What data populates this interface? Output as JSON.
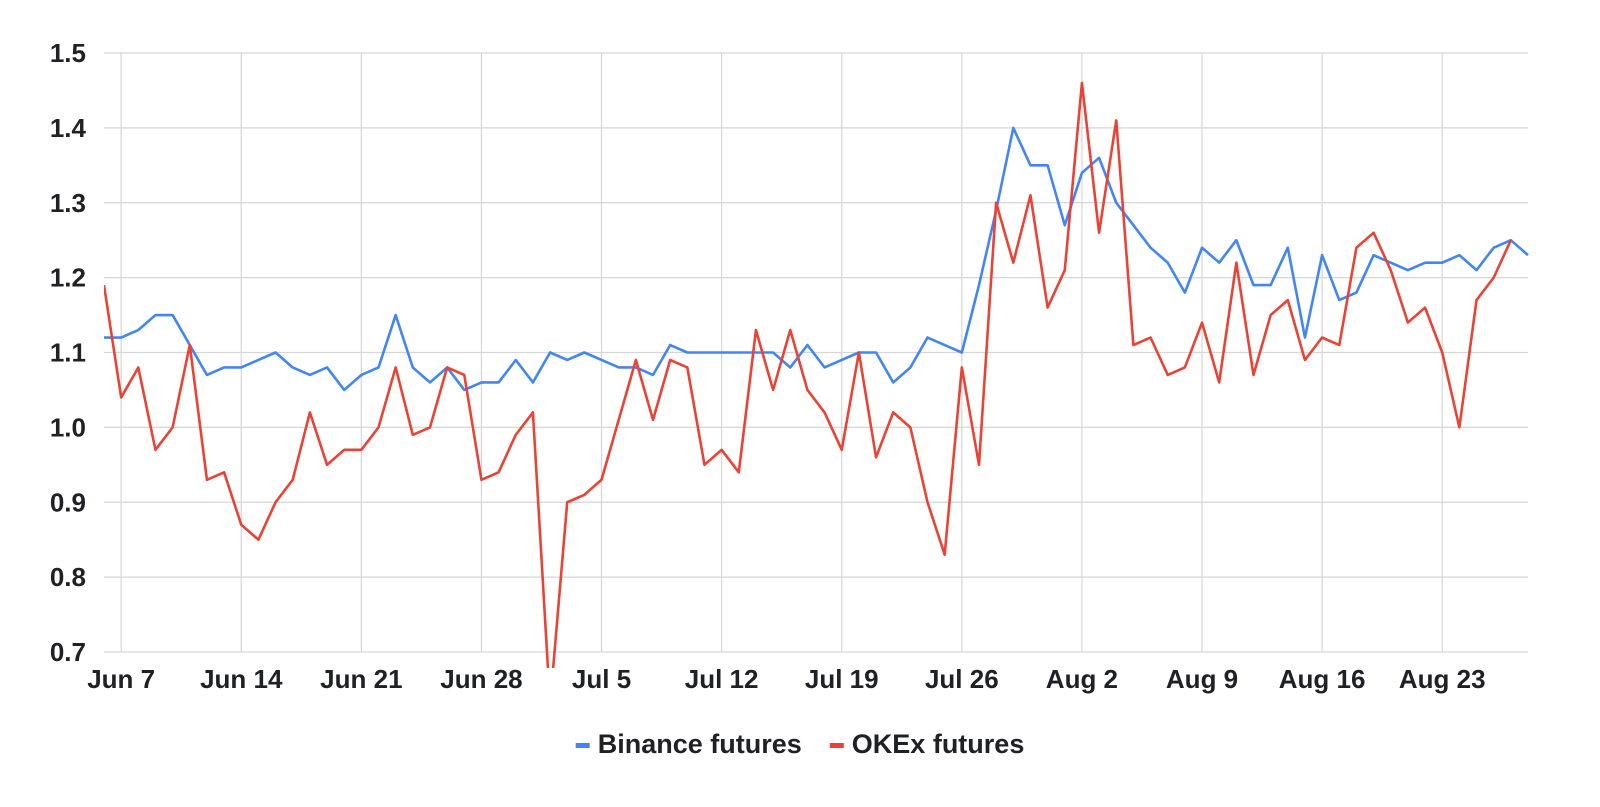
{
  "chart_data": {
    "type": "line",
    "title": "",
    "xlabel": "",
    "ylabel": "",
    "ylim": [
      0.7,
      1.5
    ],
    "yticks": [
      "0.7",
      "0.8",
      "0.9",
      "1.0",
      "1.1",
      "1.2",
      "1.3",
      "1.4",
      "1.5"
    ],
    "x_start": "2021-06-06",
    "xticks": [
      {
        "label": "Jun 7",
        "date": "2021-06-07"
      },
      {
        "label": "Jun 14",
        "date": "2021-06-14"
      },
      {
        "label": "Jun 21",
        "date": "2021-06-21"
      },
      {
        "label": "Jun 28",
        "date": "2021-06-28"
      },
      {
        "label": "Jul 5",
        "date": "2021-07-05"
      },
      {
        "label": "Jul 12",
        "date": "2021-07-12"
      },
      {
        "label": "Jul 19",
        "date": "2021-07-19"
      },
      {
        "label": "Jul 26",
        "date": "2021-07-26"
      },
      {
        "label": "Aug 2",
        "date": "2021-08-02"
      },
      {
        "label": "Aug 9",
        "date": "2021-08-09"
      },
      {
        "label": "Aug 16",
        "date": "2021-08-16"
      },
      {
        "label": "Aug 23",
        "date": "2021-08-23"
      }
    ],
    "grid": true,
    "legend_position": "bottom",
    "series": [
      {
        "name": "Binance futures",
        "color": "#4285f4",
        "values": [
          1.12,
          1.12,
          1.13,
          1.15,
          1.15,
          1.11,
          1.07,
          1.08,
          1.08,
          1.09,
          1.1,
          1.08,
          1.07,
          1.08,
          1.05,
          1.07,
          1.08,
          1.15,
          1.08,
          1.06,
          1.08,
          1.05,
          1.06,
          1.06,
          1.09,
          1.06,
          1.1,
          1.09,
          1.1,
          1.09,
          1.08,
          1.08,
          1.07,
          1.11,
          1.1,
          1.1,
          1.1,
          1.1,
          1.1,
          1.1,
          1.08,
          1.11,
          1.08,
          1.09,
          1.1,
          1.1,
          1.06,
          1.08,
          1.12,
          1.11,
          1.1,
          1.19,
          1.29,
          1.4,
          1.35,
          1.35,
          1.27,
          1.34,
          1.36,
          1.3,
          1.27,
          1.24,
          1.22,
          1.18,
          1.24,
          1.22,
          1.25,
          1.19,
          1.19,
          1.24,
          1.12,
          1.23,
          1.17,
          1.18,
          1.23,
          1.22,
          1.21,
          1.22,
          1.22,
          1.23,
          1.21,
          1.24,
          1.25,
          1.23
        ]
      },
      {
        "name": "OKEx futures",
        "color": "#ea4335",
        "values": [
          1.19,
          1.04,
          1.08,
          0.97,
          1.0,
          1.11,
          0.93,
          0.94,
          0.87,
          0.85,
          0.9,
          0.93,
          1.02,
          0.95,
          0.97,
          0.97,
          1.0,
          1.08,
          0.99,
          1.0,
          1.08,
          1.07,
          0.93,
          0.94,
          0.99,
          1.02,
          0.63,
          0.9,
          0.91,
          0.93,
          1.01,
          1.09,
          1.01,
          1.09,
          1.08,
          0.95,
          0.97,
          0.94,
          1.13,
          1.05,
          1.13,
          1.05,
          1.02,
          0.97,
          1.1,
          0.96,
          1.02,
          1.0,
          0.9,
          0.83,
          1.08,
          0.95,
          1.3,
          1.22,
          1.31,
          1.16,
          1.21,
          1.46,
          1.26,
          1.41,
          1.11,
          1.12,
          1.07,
          1.08,
          1.14,
          1.06,
          1.22,
          1.07,
          1.15,
          1.17,
          1.09,
          1.12,
          1.11,
          1.24,
          1.26,
          1.21,
          1.14,
          1.16,
          1.1,
          1.0,
          1.17,
          1.2,
          1.25
        ]
      }
    ]
  }
}
